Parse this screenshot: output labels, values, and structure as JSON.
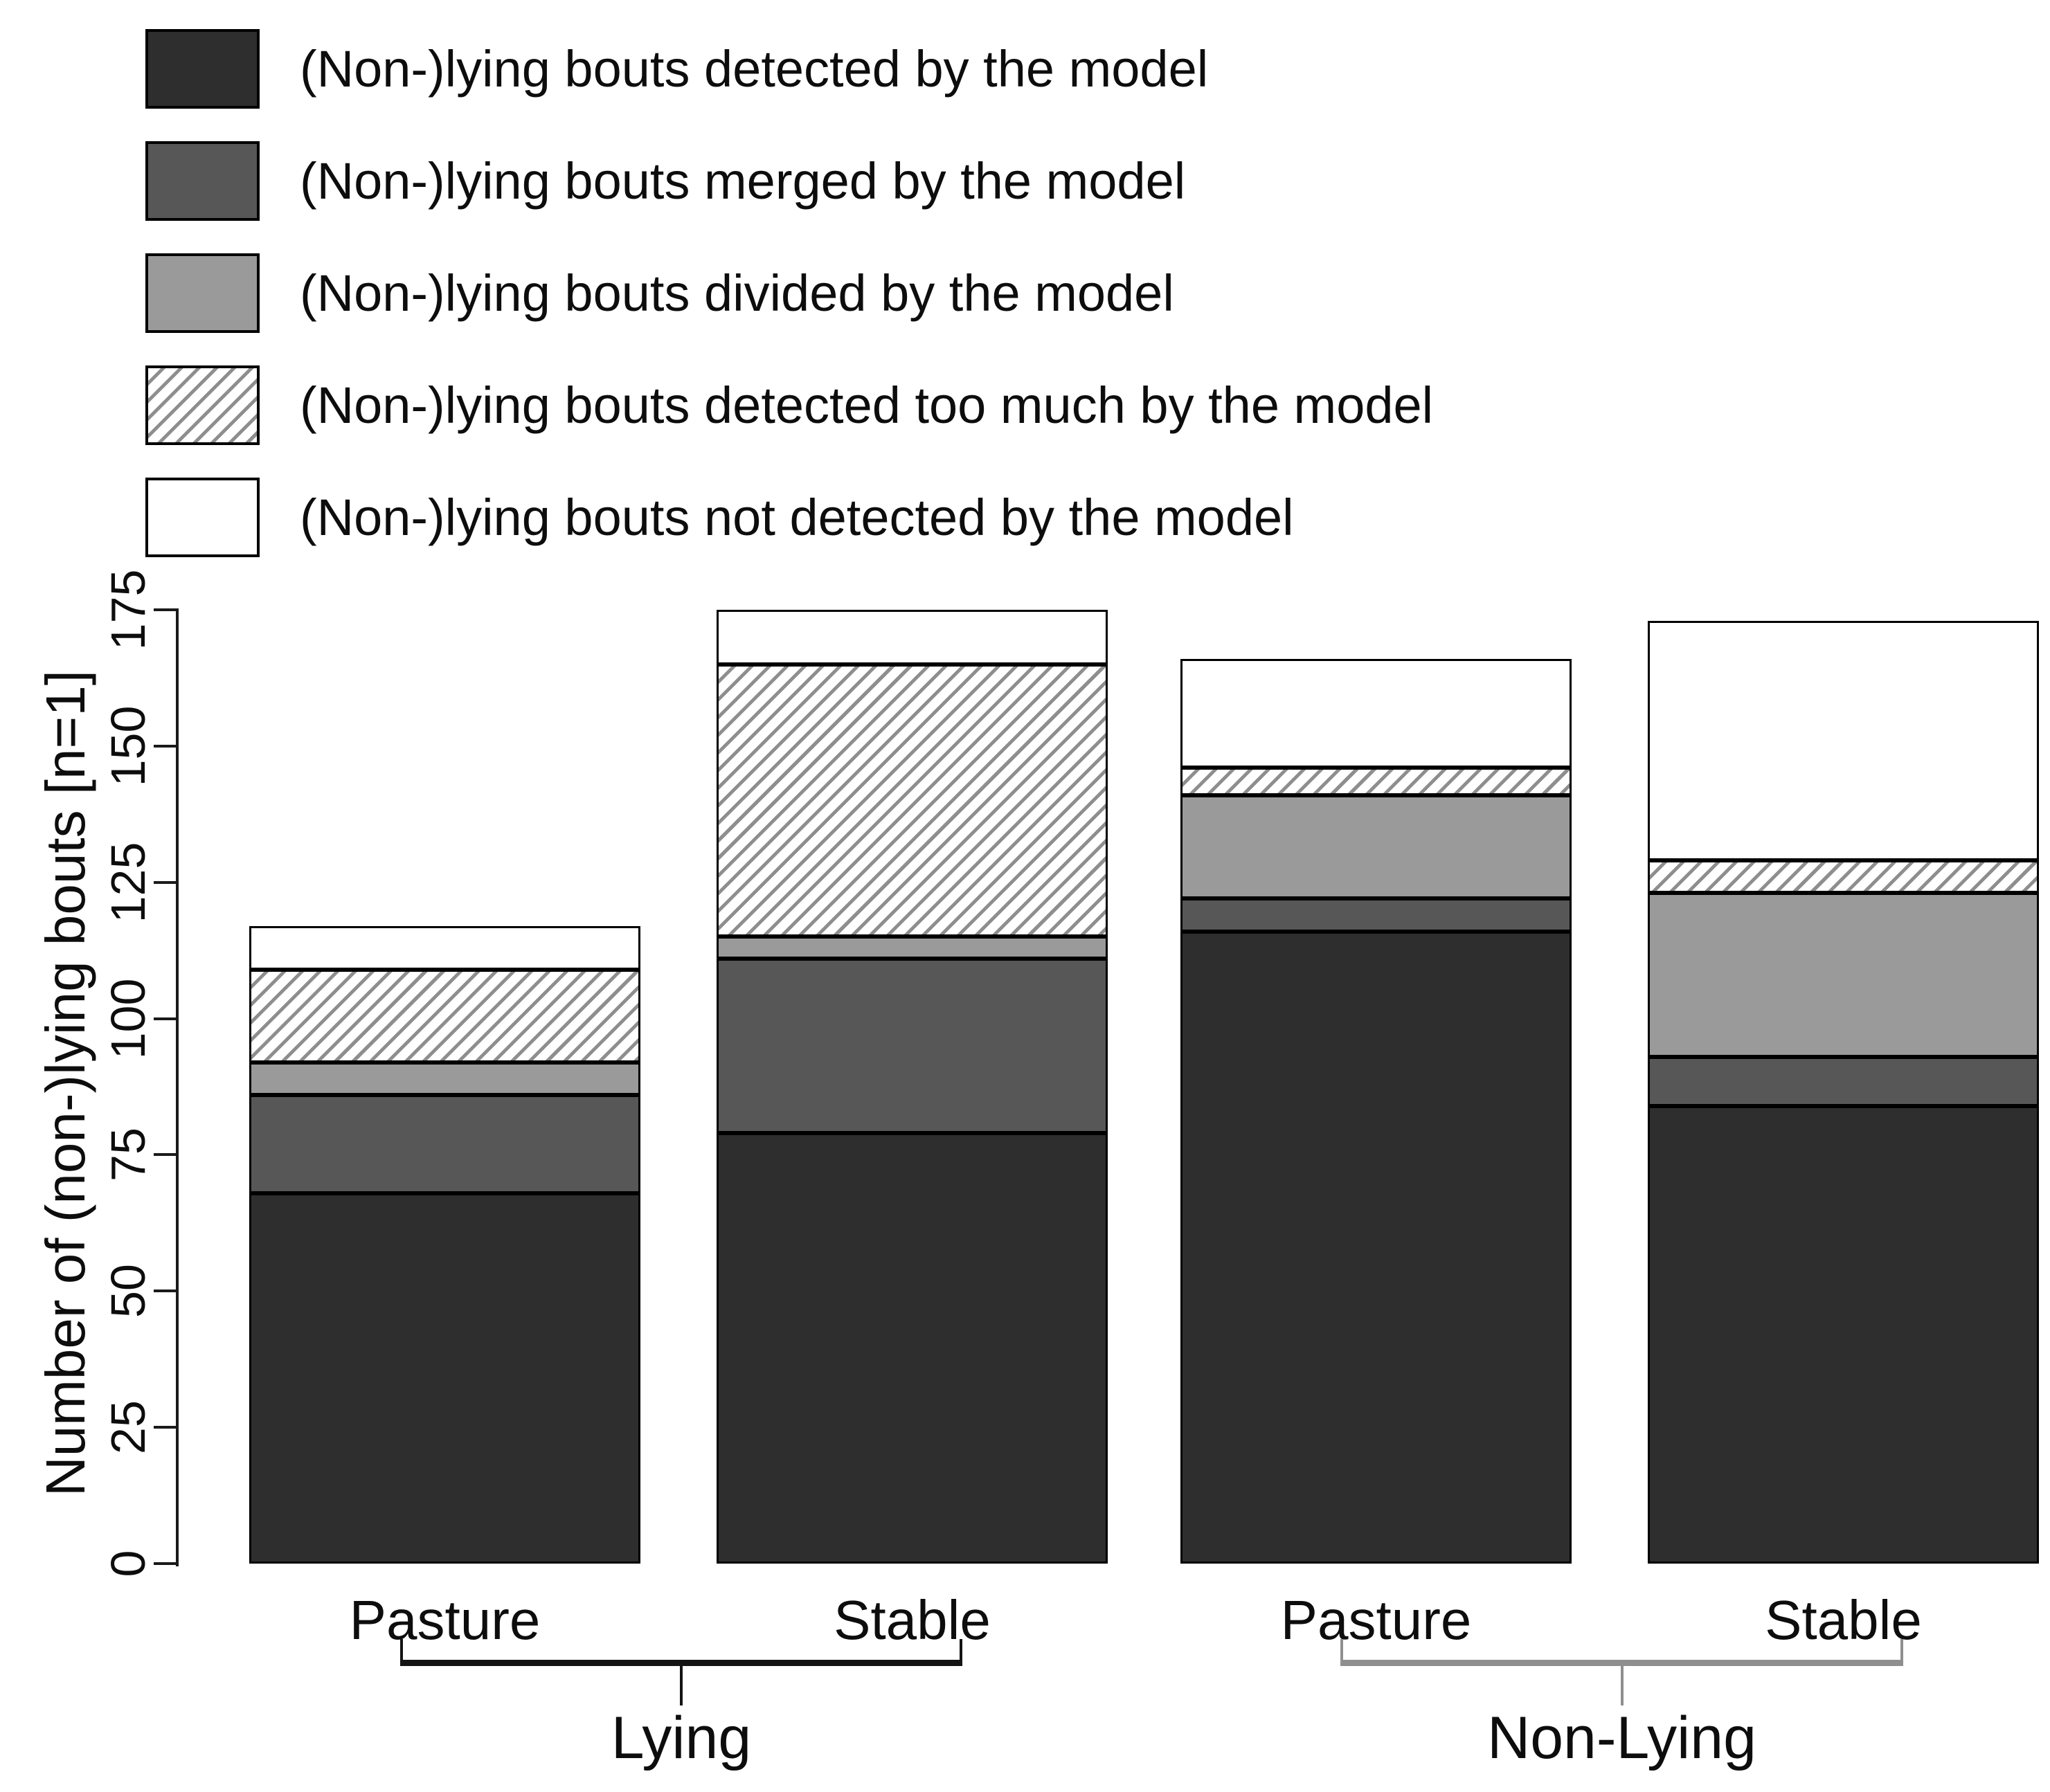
{
  "legend": {
    "items": [
      {
        "key": "detected",
        "label": "(Non-)lying bouts detected by the model",
        "color": "#2e2e2e",
        "pattern": "solid"
      },
      {
        "key": "merged",
        "label": "(Non-)lying bouts merged by the model",
        "color": "#575757",
        "pattern": "solid"
      },
      {
        "key": "divided",
        "label": "(Non-)lying bouts divided by the model",
        "color": "#9a9a9a",
        "pattern": "solid"
      },
      {
        "key": "too_much",
        "label": "(Non-)lying bouts detected too much by the model",
        "color": "#ffffff",
        "pattern": "hatch"
      },
      {
        "key": "not_detected",
        "label": "(Non-)lying bouts not detected by the model",
        "color": "#ffffff",
        "pattern": "solid"
      }
    ]
  },
  "y_axis": {
    "title": "Number of (non-)lying bouts [n=1]",
    "ticks": [
      0,
      25,
      50,
      75,
      100,
      125,
      150,
      175
    ]
  },
  "x_axis": {
    "bar_labels": [
      "Pasture",
      "Stable",
      "Pasture",
      "Stable"
    ],
    "groups": [
      {
        "label": "Lying",
        "bracket_color": "#141414"
      },
      {
        "label": "Non-Lying",
        "bracket_color": "#8f8f8f"
      }
    ]
  },
  "chart_data": {
    "type": "bar",
    "stacked": true,
    "orientation": "vertical",
    "categories": [
      "Lying Pasture",
      "Lying Stable",
      "Non-Lying Pasture",
      "Non-Lying Stable"
    ],
    "series": [
      {
        "name": "(Non-)lying bouts detected by the model",
        "style": "detected",
        "values": [
          68,
          79,
          116,
          84
        ]
      },
      {
        "name": "(Non-)lying bouts merged by the model",
        "style": "merged",
        "values": [
          18,
          32,
          6,
          9
        ]
      },
      {
        "name": "(Non-)lying bouts divided by the model",
        "style": "divided",
        "values": [
          6,
          4,
          19,
          30
        ]
      },
      {
        "name": "(Non-)lying bouts detected too much by the model",
        "style": "too_much",
        "values": [
          17,
          50,
          5,
          6
        ]
      },
      {
        "name": "(Non-)lying bouts not detected by the model",
        "style": "not_detected",
        "values": [
          8,
          10,
          20,
          44
        ]
      }
    ],
    "totals": [
      117,
      175,
      166,
      173
    ],
    "ylabel": "Number of (non-)lying bouts [n=1]",
    "ylim": [
      0,
      175
    ],
    "grid": false,
    "legend_position": "top-left"
  }
}
